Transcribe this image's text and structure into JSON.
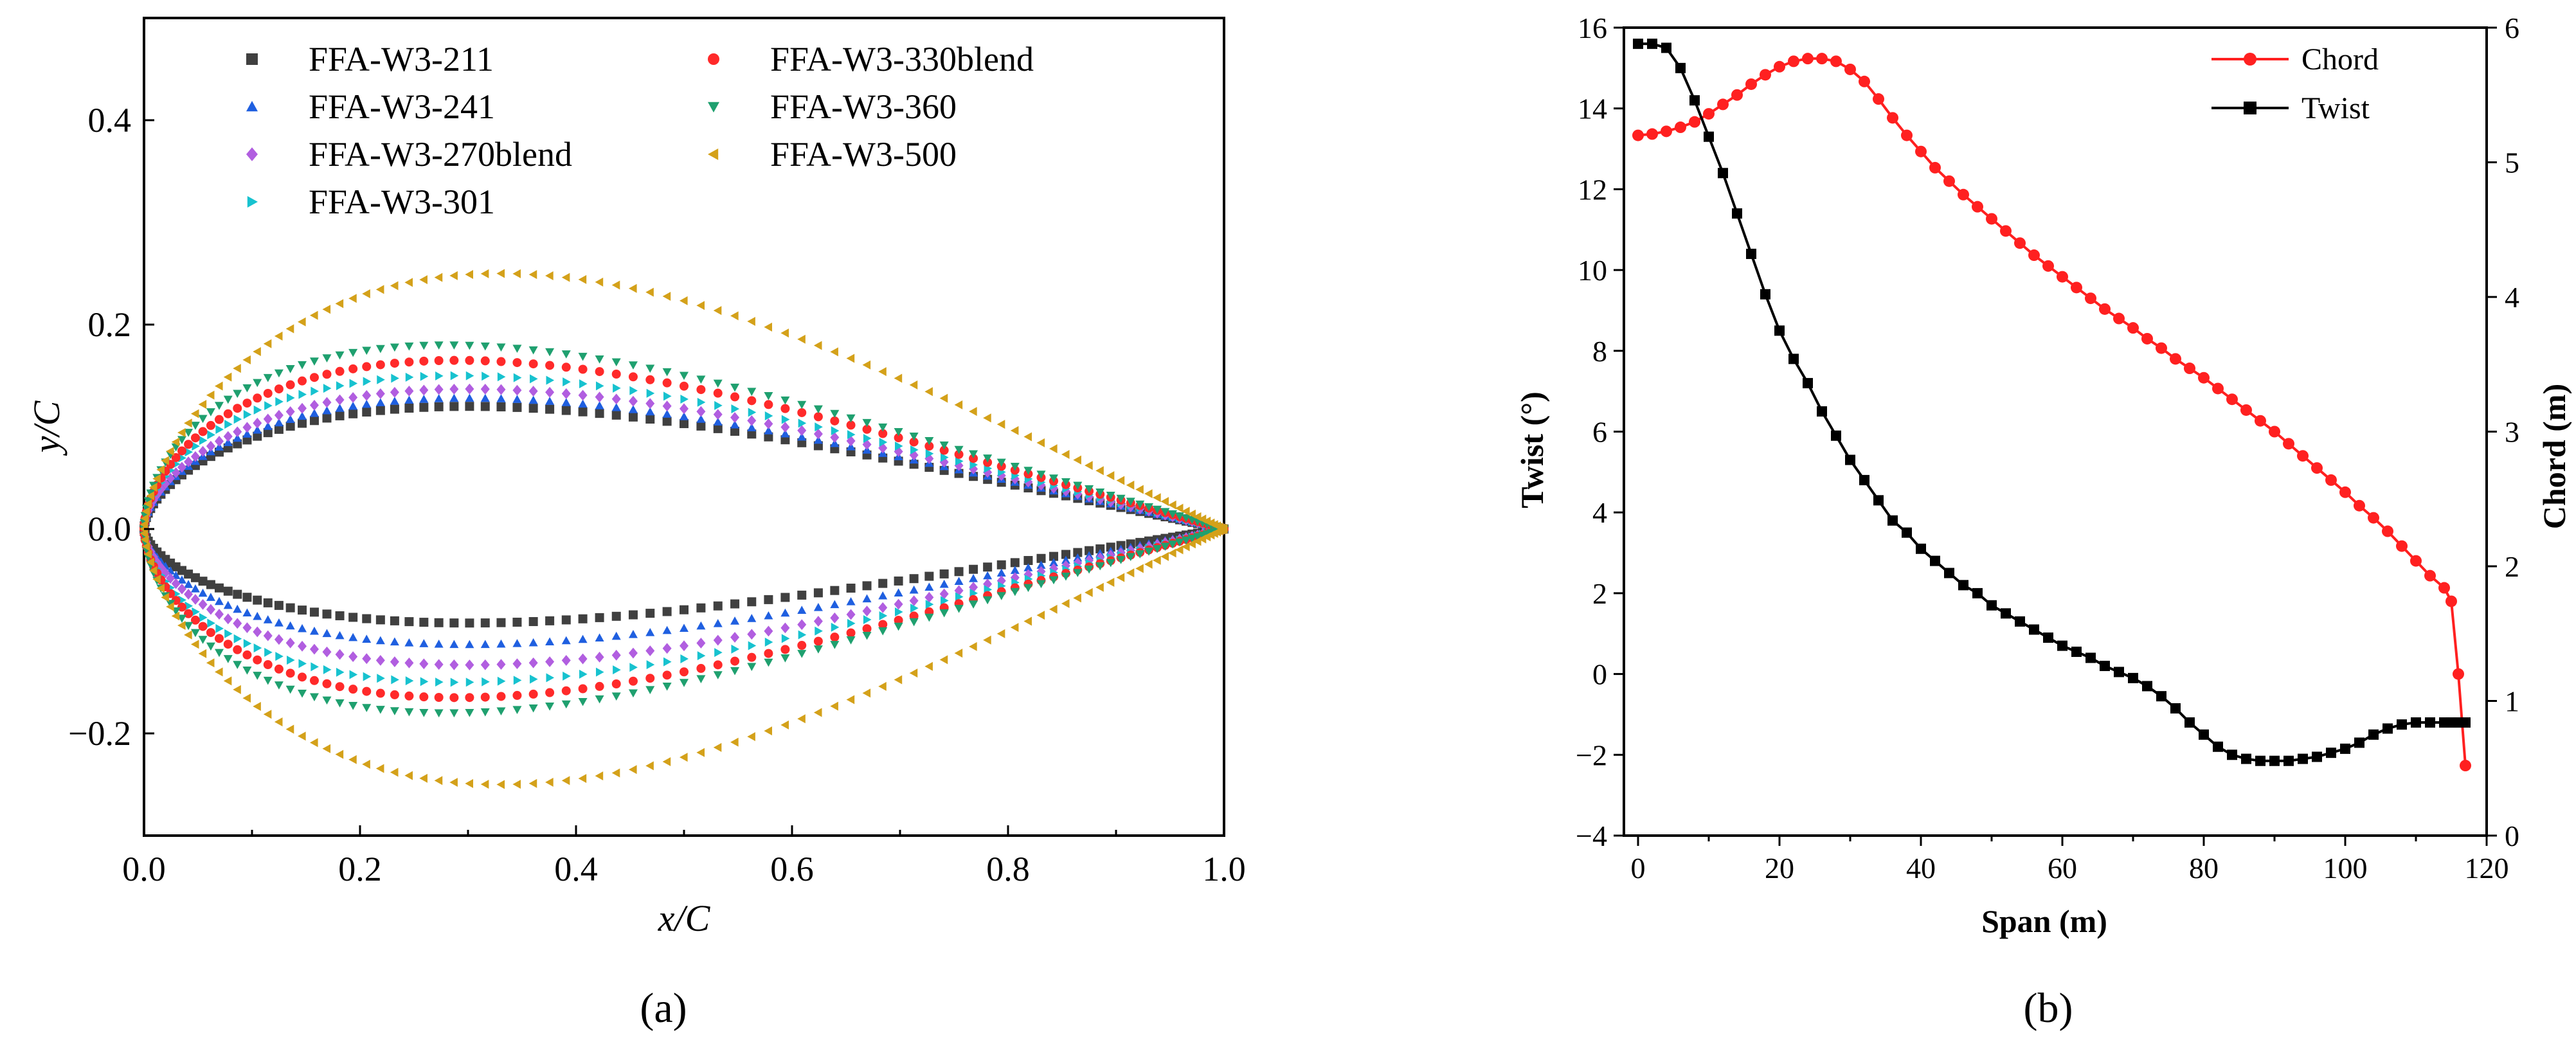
{
  "chart_data": [
    {
      "type": "scatter",
      "panel_label": "(a)",
      "xlabel": "x/C",
      "ylabel": "y/C",
      "xlim": [
        0.0,
        1.0
      ],
      "ylim": [
        -0.3,
        0.5
      ],
      "x_ticks": [
        0.0,
        0.2,
        0.4,
        0.6,
        0.8,
        1.0
      ],
      "x_tick_labels": [
        "0.0",
        "0.2",
        "0.4",
        "0.6",
        "0.8",
        "1.0"
      ],
      "y_ticks": [
        -0.2,
        0.0,
        0.2,
        0.4
      ],
      "y_tick_labels": [
        "−0.2",
        "0.0",
        "0.2",
        "0.4"
      ],
      "grid": false,
      "legend_position": "top",
      "series": [
        {
          "name": "FFA-W3-211",
          "marker": "square",
          "color": "#404040",
          "upper_max": 0.12,
          "upper_peak_x": 0.3,
          "lower_min": -0.092,
          "lower_min_x": 0.3
        },
        {
          "name": "FFA-W3-241",
          "marker": "triangle-up",
          "color": "#1f5fe0",
          "upper_max": 0.128,
          "upper_peak_x": 0.3,
          "lower_min": -0.113,
          "lower_min_x": 0.3
        },
        {
          "name": "FFA-W3-270blend",
          "marker": "diamond",
          "color": "#b15ee0",
          "upper_max": 0.137,
          "upper_peak_x": 0.3,
          "lower_min": -0.133,
          "lower_min_x": 0.3
        },
        {
          "name": "FFA-W3-301",
          "marker": "triangle-right",
          "color": "#17c2cf",
          "upper_max": 0.15,
          "upper_peak_x": 0.29,
          "lower_min": -0.15,
          "lower_min_x": 0.29
        },
        {
          "name": "FFA-W3-330blend",
          "marker": "circle",
          "color": "#ff2a2a",
          "upper_max": 0.165,
          "upper_peak_x": 0.29,
          "lower_min": -0.165,
          "lower_min_x": 0.29
        },
        {
          "name": "FFA-W3-360",
          "marker": "triangle-down",
          "color": "#1fa06f",
          "upper_max": 0.18,
          "upper_peak_x": 0.28,
          "lower_min": -0.18,
          "lower_min_x": 0.28
        },
        {
          "name": "FFA-W3-500",
          "marker": "triangle-left",
          "color": "#d4a11a",
          "upper_max": 0.25,
          "upper_peak_x": 0.33,
          "lower_min": -0.25,
          "lower_min_x": 0.33
        }
      ]
    },
    {
      "type": "line",
      "panel_label": "(b)",
      "xlabel": "Span (m)",
      "ylabel_left": "Twist (°)",
      "ylabel_right": "Chord (m)",
      "xlim": [
        -2,
        120
      ],
      "ylim_left": [
        -4,
        16
      ],
      "ylim_right": [
        0,
        6
      ],
      "x_ticks": [
        0,
        20,
        40,
        60,
        80,
        100,
        120
      ],
      "x_tick_labels": [
        "0",
        "20",
        "40",
        "60",
        "80",
        "100",
        "120"
      ],
      "y_left_ticks": [
        -4,
        -2,
        0,
        2,
        4,
        6,
        8,
        10,
        12,
        14,
        16
      ],
      "y_left_tick_labels": [
        "−4",
        "−2",
        "0",
        "2",
        "4",
        "6",
        "8",
        "10",
        "12",
        "14",
        "16"
      ],
      "y_right_ticks": [
        0,
        1,
        2,
        3,
        4,
        5,
        6
      ],
      "y_right_tick_labels": [
        "0",
        "1",
        "2",
        "3",
        "4",
        "5",
        "6"
      ],
      "grid": false,
      "legend_position": "top-right",
      "series": [
        {
          "name": "Chord",
          "axis": "right",
          "color": "#ff2020",
          "marker": "circle",
          "x": [
            0,
            2,
            4,
            6,
            8,
            10,
            12,
            14,
            16,
            18,
            20,
            22,
            24,
            26,
            28,
            30,
            32,
            34,
            36,
            38,
            40,
            42,
            44,
            46,
            48,
            50,
            52,
            54,
            56,
            58,
            60,
            62,
            64,
            66,
            68,
            70,
            72,
            74,
            76,
            78,
            80,
            82,
            84,
            86,
            88,
            90,
            92,
            94,
            96,
            98,
            100,
            102,
            104,
            106,
            108,
            110,
            112,
            114,
            115,
            116,
            117
          ],
          "values": [
            5.2,
            5.21,
            5.23,
            5.26,
            5.3,
            5.36,
            5.43,
            5.5,
            5.58,
            5.65,
            5.71,
            5.75,
            5.77,
            5.77,
            5.75,
            5.69,
            5.6,
            5.47,
            5.33,
            5.2,
            5.08,
            4.96,
            4.86,
            4.76,
            4.67,
            4.58,
            4.49,
            4.4,
            4.31,
            4.23,
            4.15,
            4.07,
            3.99,
            3.91,
            3.84,
            3.77,
            3.69,
            3.62,
            3.54,
            3.47,
            3.4,
            3.32,
            3.24,
            3.16,
            3.08,
            3.0,
            2.91,
            2.82,
            2.73,
            2.64,
            2.55,
            2.45,
            2.36,
            2.26,
            2.15,
            2.04,
            1.93,
            1.84,
            1.74,
            1.2,
            0.52
          ]
        },
        {
          "name": "Twist",
          "axis": "left",
          "color": "#000000",
          "marker": "square",
          "x": [
            0,
            2,
            4,
            6,
            8,
            10,
            12,
            14,
            16,
            18,
            20,
            22,
            24,
            26,
            28,
            30,
            32,
            34,
            36,
            38,
            40,
            42,
            44,
            46,
            48,
            50,
            52,
            54,
            56,
            58,
            60,
            62,
            64,
            66,
            68,
            70,
            72,
            74,
            76,
            78,
            80,
            82,
            84,
            86,
            88,
            90,
            92,
            94,
            96,
            98,
            100,
            102,
            104,
            106,
            108,
            110,
            112,
            114,
            115,
            116,
            117
          ],
          "values": [
            15.6,
            15.6,
            15.5,
            15.0,
            14.2,
            13.3,
            12.4,
            11.4,
            10.4,
            9.4,
            8.5,
            7.8,
            7.2,
            6.5,
            5.9,
            5.3,
            4.8,
            4.3,
            3.8,
            3.5,
            3.1,
            2.8,
            2.5,
            2.2,
            2.0,
            1.7,
            1.5,
            1.3,
            1.1,
            0.9,
            0.7,
            0.55,
            0.4,
            0.2,
            0.05,
            -0.1,
            -0.3,
            -0.55,
            -0.85,
            -1.2,
            -1.5,
            -1.8,
            -2.0,
            -2.1,
            -2.15,
            -2.15,
            -2.15,
            -2.1,
            -2.05,
            -1.95,
            -1.85,
            -1.7,
            -1.5,
            -1.35,
            -1.25,
            -1.2,
            -1.2,
            -1.2,
            -1.2,
            -1.2,
            -1.2
          ]
        }
      ]
    }
  ]
}
